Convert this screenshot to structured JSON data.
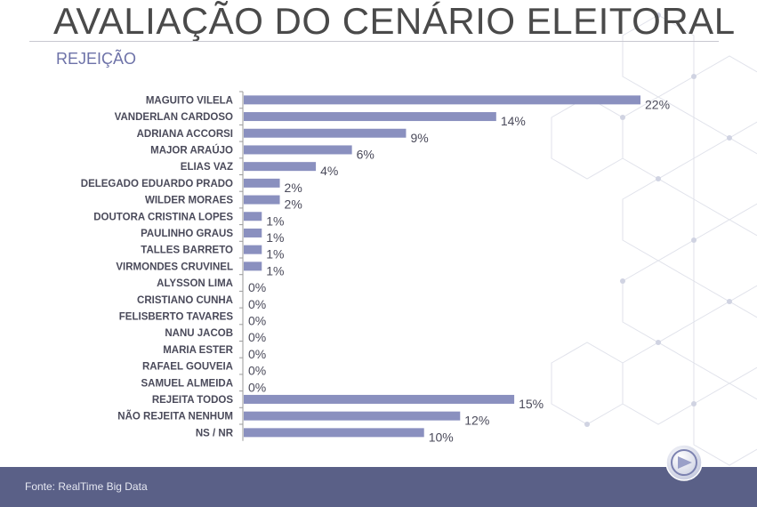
{
  "header": {
    "title": "AVALIAÇÃO DO CENÁRIO ELEITORAL",
    "subtitle": "REJEIÇÃO"
  },
  "footer": {
    "source": "Fonte: RealTime Big Data"
  },
  "colors": {
    "bar": "#8a90bf",
    "footer_bg": "#5a6087",
    "subtitle": "#6d72a8"
  },
  "chart_data": {
    "type": "bar",
    "orientation": "horizontal",
    "categories": [
      "MAGUITO VILELA",
      "VANDERLAN CARDOSO",
      "ADRIANA ACCORSI",
      "MAJOR ARAÚJO",
      "ELIAS VAZ",
      "DELEGADO EDUARDO PRADO",
      "WILDER MORAES",
      "DOUTORA CRISTINA LOPES",
      "PAULINHO GRAUS",
      "TALLES BARRETO",
      "VIRMONDES CRUVINEL",
      "ALYSSON LIMA",
      "CRISTIANO CUNHA",
      "FELISBERTO TAVARES",
      "NANU JACOB",
      "MARIA ESTER",
      "RAFAEL GOUVEIA",
      "SAMUEL ALMEIDA",
      "REJEITA TODOS",
      "NÃO REJEITA NENHUM",
      "NS / NR"
    ],
    "values": [
      22,
      14,
      9,
      6,
      4,
      2,
      2,
      1,
      1,
      1,
      1,
      0,
      0,
      0,
      0,
      0,
      0,
      0,
      15,
      12,
      10
    ],
    "data_labels": [
      "22%",
      "14%",
      "9%",
      "6%",
      "4%",
      "2%",
      "2%",
      "1%",
      "1%",
      "1%",
      "1%",
      "0%",
      "0%",
      "0%",
      "0%",
      "0%",
      "0%",
      "0%",
      "15%",
      "12%",
      "10%"
    ],
    "xlim": [
      0,
      22
    ],
    "grid": false,
    "legend": "none"
  }
}
